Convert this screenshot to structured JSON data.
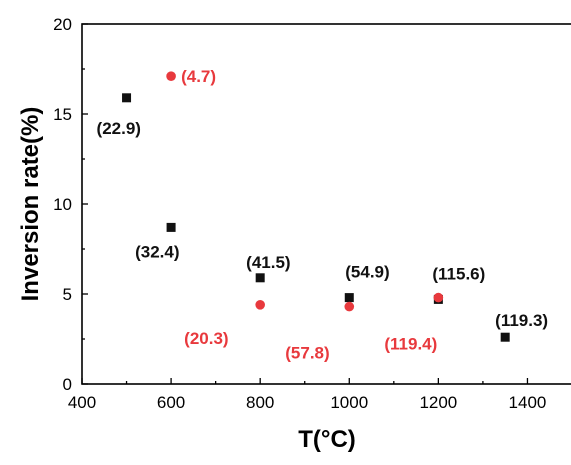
{
  "chart_data": {
    "type": "scatter",
    "title": "",
    "xlabel": "T(°C)",
    "ylabel": "Inversion rate(%)",
    "xlim": [
      400,
      1500
    ],
    "ylim": [
      0,
      20
    ],
    "xticks": [
      "400",
      "600",
      "800",
      "1000",
      "1200",
      "1400"
    ],
    "yticks": [
      "0",
      "5",
      "10",
      "15",
      "20"
    ],
    "grid": false,
    "legend": "none",
    "series": [
      {
        "marker": "square",
        "color": "#111111",
        "points": [
          {
            "x": 500,
            "y": 15.9,
            "label": "(22.9)"
          },
          {
            "x": 600,
            "y": 8.7,
            "label": "(32.4)"
          },
          {
            "x": 800,
            "y": 5.9,
            "label": "(41.5)"
          },
          {
            "x": 1000,
            "y": 4.8,
            "label": "(54.9)"
          },
          {
            "x": 1200,
            "y": 4.7,
            "label": "(115.6)"
          },
          {
            "x": 1350,
            "y": 2.6,
            "label": "(119.3)"
          }
        ]
      },
      {
        "marker": "circle",
        "color": "#e8393d",
        "points": [
          {
            "x": 600,
            "y": 17.1,
            "label": "(4.7)"
          },
          {
            "x": 800,
            "y": 4.4,
            "label": "(20.3)"
          },
          {
            "x": 1000,
            "y": 4.3,
            "label": "(57.8)"
          },
          {
            "x": 1200,
            "y": 4.8,
            "label": "(119.4)"
          }
        ]
      }
    ]
  }
}
